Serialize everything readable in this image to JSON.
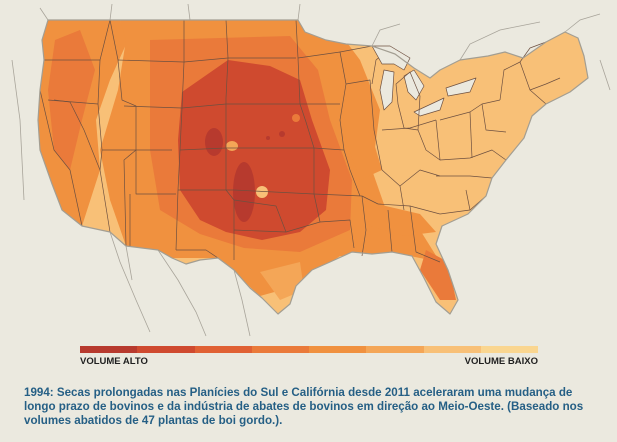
{
  "legend": {
    "high_label": "VOLUME ALTO",
    "low_label": "VOLUME BAIXO",
    "scale_colors": [
      "#b73a2e",
      "#cf4a2f",
      "#e06134",
      "#ea7a3a",
      "#f0913f",
      "#f4a657",
      "#f8c077",
      "#fad690"
    ]
  },
  "caption": "1994: Secas prolongadas nas Planícies do Sul e Califórnia desde 2011 aceleraram uma mudança de longo prazo de bovinos e da indústria de abates de bovinos em direção ao Meio-Oeste. (Baseado nos volumes abatidos de 47 plantas de boi gordo.).",
  "colors": {
    "background": "#ebe9df",
    "state_border": "#6e5040",
    "outer_border": "#a39e92",
    "caption_text": "#255f85"
  }
}
